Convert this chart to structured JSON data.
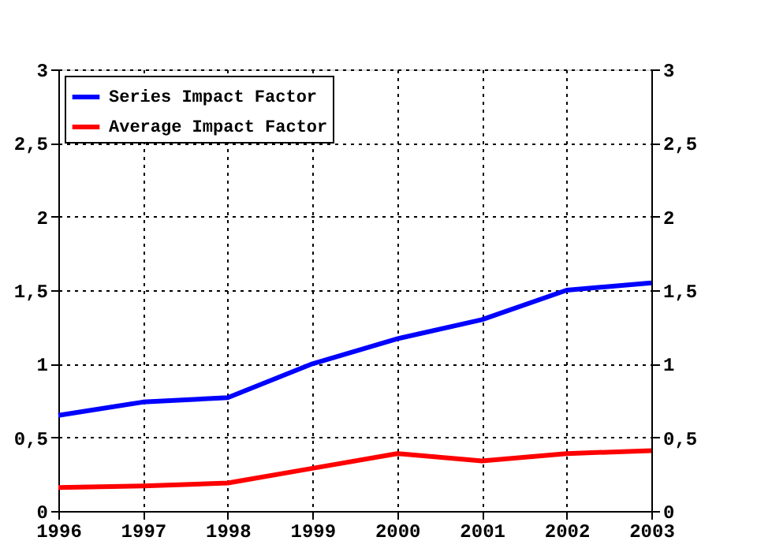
{
  "chart_data": {
    "type": "line",
    "x": [
      1996,
      1997,
      1998,
      1999,
      2000,
      2001,
      2002,
      2003
    ],
    "series": [
      {
        "name": "Series Impact Factor",
        "color": "#0000ff",
        "values": [
          0.65,
          0.74,
          0.77,
          1.0,
          1.17,
          1.3,
          1.5,
          1.55
        ]
      },
      {
        "name": "Average Impact Factor",
        "color": "#ff0000",
        "values": [
          0.16,
          0.17,
          0.19,
          0.29,
          0.39,
          0.34,
          0.39,
          0.41
        ]
      }
    ],
    "xlim": [
      1996,
      2003
    ],
    "xticks": [
      1996,
      1997,
      1998,
      1999,
      2000,
      2001,
      2002,
      2003
    ],
    "ylim": [
      0,
      3
    ],
    "yticks": [
      0,
      {
        "value": 0.5,
        "label": "0,5"
      },
      1,
      {
        "value": 1.5,
        "label": "1,5"
      },
      2,
      {
        "value": 2.5,
        "label": "2,5"
      },
      3
    ],
    "y2lim": [
      0,
      3
    ],
    "y2ticks": [
      0,
      {
        "value": 0.5,
        "label": "0,5"
      },
      1,
      {
        "value": 1.5,
        "label": "1,5"
      },
      2,
      {
        "value": 2.5,
        "label": "2,5"
      },
      3
    ],
    "grid": true,
    "legend": "top left",
    "line_style": "solid",
    "marker": "none"
  }
}
